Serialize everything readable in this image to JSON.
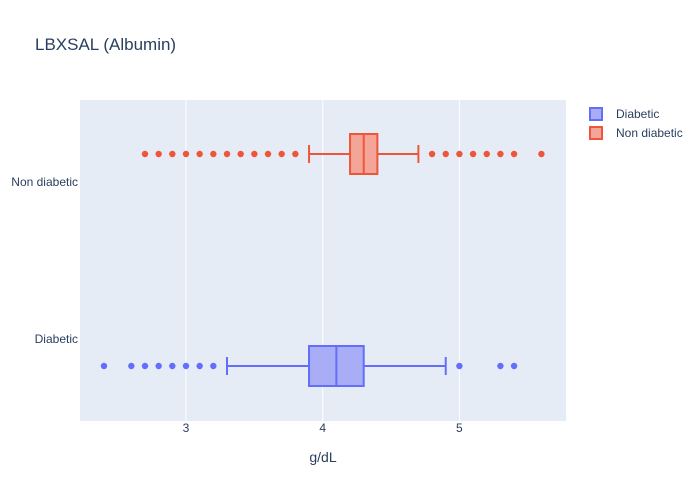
{
  "chart_data": {
    "type": "box",
    "orientation": "horizontal",
    "title": "LBXSAL (Albumin)",
    "xlabel": "g/dL",
    "ylabel": "",
    "xlim": [
      2.3,
      5.77
    ],
    "x_ticks": [
      3,
      4,
      5
    ],
    "x_tick_labels": [
      "3",
      "4",
      "5"
    ],
    "categories": [
      "Diabetic",
      "Non diabetic"
    ],
    "grid": true,
    "legend_position": "top-right",
    "series": [
      {
        "name": "Diabetic",
        "color": "#636efa",
        "fill": "#a8adf6",
        "lower_fence": 3.3,
        "q1": 3.9,
        "median": 4.1,
        "q3": 4.3,
        "upper_fence": 4.9,
        "outliers": [
          2.4,
          2.6,
          2.7,
          2.8,
          2.9,
          3.0,
          3.1,
          3.2,
          5.0,
          5.3,
          5.4
        ]
      },
      {
        "name": "Non diabetic",
        "color": "#ef553b",
        "fill": "#f3a597",
        "lower_fence": 3.9,
        "q1": 4.2,
        "median": 4.3,
        "q3": 4.4,
        "upper_fence": 4.7,
        "outliers": [
          2.7,
          2.8,
          2.9,
          3.0,
          3.1,
          3.2,
          3.3,
          3.4,
          3.5,
          3.6,
          3.7,
          3.8,
          4.8,
          4.9,
          5.0,
          5.1,
          5.2,
          5.3,
          5.4,
          5.6
        ]
      }
    ]
  }
}
